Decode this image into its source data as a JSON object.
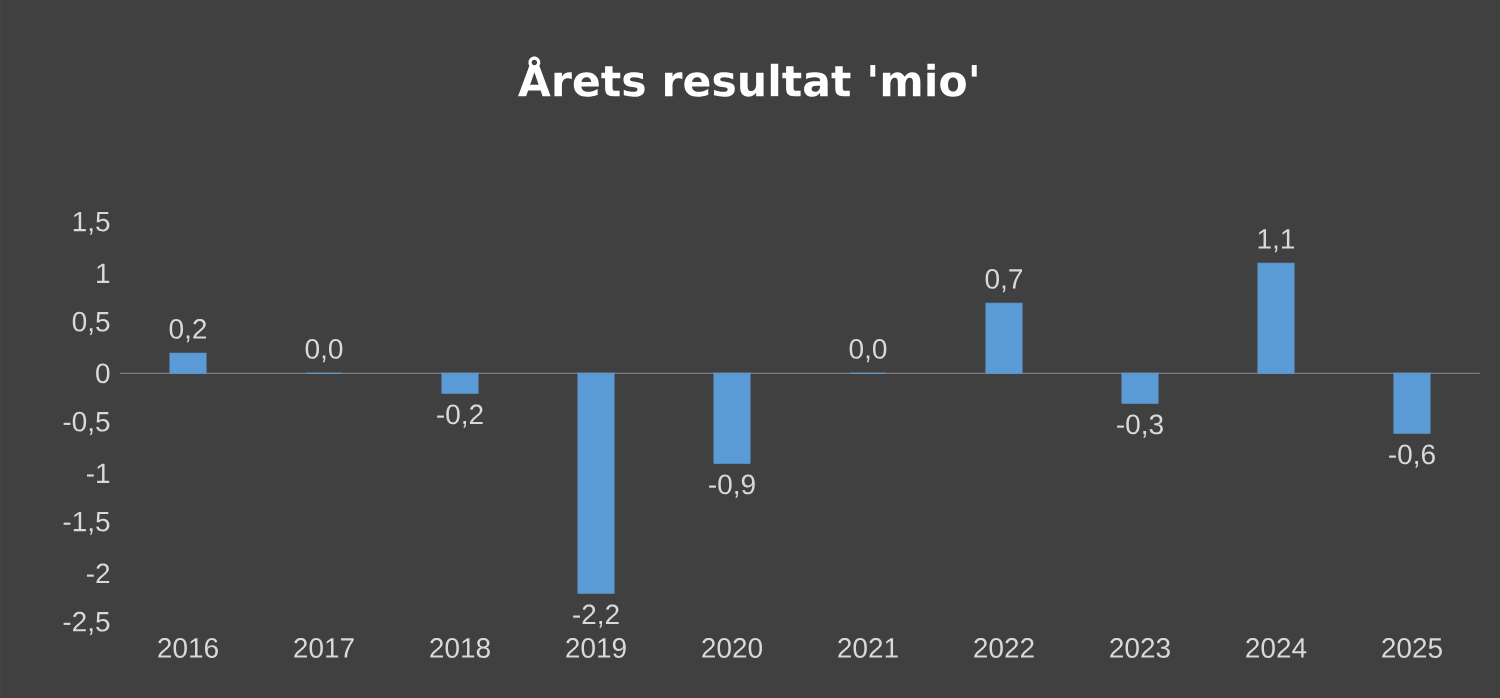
{
  "chart_data": {
    "type": "bar",
    "title": "Årets resultat 'mio'",
    "categories": [
      "2016",
      "2017",
      "2018",
      "2019",
      "2020",
      "2021",
      "2022",
      "2023",
      "2024",
      "2025"
    ],
    "values": [
      0.2,
      0.0,
      -0.2,
      -2.2,
      -0.9,
      0.0,
      0.7,
      -0.3,
      1.1,
      -0.6
    ],
    "value_labels": [
      "0,2",
      "0,0",
      "-0,2",
      "-2,2",
      "-0,9",
      "0,0",
      "0,7",
      "-0,3",
      "1,1",
      "-0,6"
    ],
    "color": "#5b9bd5",
    "ylim": [
      -2.5,
      1.5
    ],
    "yticks": [
      {
        "value": -2.5,
        "label": "-2,5"
      },
      {
        "value": -2,
        "label": "-2"
      },
      {
        "value": -1.5,
        "label": "-1,5"
      },
      {
        "value": -1,
        "label": "-1"
      },
      {
        "value": -0.5,
        "label": "-0,5"
      },
      {
        "value": 0,
        "label": "0"
      },
      {
        "value": 0.5,
        "label": "0,5"
      },
      {
        "value": 1,
        "label": "1"
      },
      {
        "value": 1.5,
        "label": "1,5"
      }
    ],
    "legend": false
  }
}
